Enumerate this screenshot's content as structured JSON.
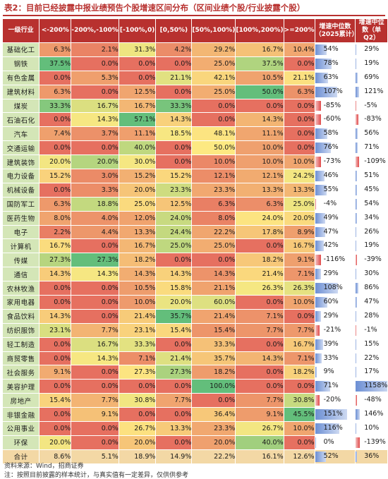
{
  "title": "表2：目前已经披露中报业绩预告个股增速区间分布（区间业绩个股/行业披露个股）",
  "headers": [
    "一级行业",
    "<-200%",
    "-200%,-100%",
    "[-100%,0)",
    "[0,50%)",
    "[50%,100%)",
    "[100%,200%)",
    ">=200%",
    "增速中位数（2025累计）",
    "增速中位数（单Q2）"
  ],
  "rows": [
    {
      "industry": "基础化工",
      "cells": [
        "6.3%",
        "2.1%",
        "31.3%",
        "4.2%",
        "29.2%",
        "16.7%",
        "10.4%"
      ],
      "m1": "54%",
      "m2": "29%"
    },
    {
      "industry": "钢铁",
      "cells": [
        "37.5%",
        "0.0%",
        "0.0%",
        "0.0%",
        "25.0%",
        "37.5%",
        "0.0%"
      ],
      "m1": "78%",
      "m2": "19%"
    },
    {
      "industry": "有色金属",
      "cells": [
        "0.0%",
        "5.3%",
        "0.0%",
        "21.1%",
        "42.1%",
        "10.5%",
        "21.1%"
      ],
      "m1": "63%",
      "m2": "69%"
    },
    {
      "industry": "建筑材料",
      "cells": [
        "6.3%",
        "0.0%",
        "12.5%",
        "0.0%",
        "25.0%",
        "50.0%",
        "6.3%"
      ],
      "m1": "107%",
      "m2": "121%"
    },
    {
      "industry": "煤炭",
      "cells": [
        "33.3%",
        "16.7%",
        "16.7%",
        "33.3%",
        "0.0%",
        "0.0%",
        "0.0%"
      ],
      "m1": "-85%",
      "m2": "-5%"
    },
    {
      "industry": "石油石化",
      "cells": [
        "0.0%",
        "14.3%",
        "57.1%",
        "14.3%",
        "0.0%",
        "14.3%",
        "0.0%"
      ],
      "m1": "-60%",
      "m2": "-83%"
    },
    {
      "industry": "汽车",
      "cells": [
        "7.4%",
        "3.7%",
        "11.1%",
        "18.5%",
        "48.1%",
        "11.1%",
        "0.0%"
      ],
      "m1": "58%",
      "m2": "56%"
    },
    {
      "industry": "交通运输",
      "cells": [
        "0.0%",
        "0.0%",
        "40.0%",
        "0.0%",
        "50.0%",
        "10.0%",
        "0.0%"
      ],
      "m1": "76%",
      "m2": "71%"
    },
    {
      "industry": "建筑装饰",
      "cells": [
        "20.0%",
        "20.0%",
        "30.0%",
        "0.0%",
        "10.0%",
        "10.0%",
        "10.0%"
      ],
      "m1": "-73%",
      "m2": "-109%"
    },
    {
      "industry": "电力设备",
      "cells": [
        "15.2%",
        "3.0%",
        "15.2%",
        "15.2%",
        "12.1%",
        "12.1%",
        "24.2%"
      ],
      "m1": "46%",
      "m2": "51%"
    },
    {
      "industry": "机械设备",
      "cells": [
        "0.0%",
        "3.3%",
        "20.0%",
        "23.3%",
        "23.3%",
        "13.3%",
        "13.3%"
      ],
      "m1": "55%",
      "m2": "45%"
    },
    {
      "industry": "国防军工",
      "cells": [
        "6.3%",
        "18.8%",
        "25.0%",
        "12.5%",
        "6.3%",
        "6.3%",
        "25.0%"
      ],
      "m1": "-4%",
      "m2": "54%"
    },
    {
      "industry": "医药生物",
      "cells": [
        "8.0%",
        "4.0%",
        "12.0%",
        "24.0%",
        "8.0%",
        "24.0%",
        "20.0%"
      ],
      "m1": "49%",
      "m2": "34%"
    },
    {
      "industry": "电子",
      "cells": [
        "2.2%",
        "4.4%",
        "13.3%",
        "24.4%",
        "22.2%",
        "17.8%",
        "8.9%"
      ],
      "m1": "47%",
      "m2": "26%"
    },
    {
      "industry": "计算机",
      "cells": [
        "16.7%",
        "0.0%",
        "16.7%",
        "25.0%",
        "25.0%",
        "0.0%",
        "16.7%"
      ],
      "m1": "42%",
      "m2": "19%"
    },
    {
      "industry": "传媒",
      "cells": [
        "27.3%",
        "27.3%",
        "18.2%",
        "0.0%",
        "0.0%",
        "18.2%",
        "9.1%"
      ],
      "m1": "-116%",
      "m2": "-39%"
    },
    {
      "industry": "通信",
      "cells": [
        "14.3%",
        "14.3%",
        "14.3%",
        "14.3%",
        "14.3%",
        "21.4%",
        "7.1%"
      ],
      "m1": "29%",
      "m2": "30%"
    },
    {
      "industry": "农林牧渔",
      "cells": [
        "0.0%",
        "0.0%",
        "10.5%",
        "15.8%",
        "21.1%",
        "26.3%",
        "26.3%"
      ],
      "m1": "108%",
      "m2": "86%"
    },
    {
      "industry": "家用电器",
      "cells": [
        "0.0%",
        "0.0%",
        "10.0%",
        "20.0%",
        "60.0%",
        "0.0%",
        "10.0%"
      ],
      "m1": "60%",
      "m2": "47%"
    },
    {
      "industry": "食品饮料",
      "cells": [
        "14.3%",
        "0.0%",
        "21.4%",
        "35.7%",
        "21.4%",
        "7.1%",
        "0.0%"
      ],
      "m1": "29%",
      "m2": "28%"
    },
    {
      "industry": "纺织服饰",
      "cells": [
        "23.1%",
        "7.7%",
        "23.1%",
        "15.4%",
        "15.4%",
        "7.7%",
        "7.7%"
      ],
      "m1": "-21%",
      "m2": "-1%"
    },
    {
      "industry": "轻工制造",
      "cells": [
        "0.0%",
        "16.7%",
        "33.3%",
        "0.0%",
        "33.3%",
        "0.0%",
        "16.7%"
      ],
      "m1": "39%",
      "m2": "15%"
    },
    {
      "industry": "商贸零售",
      "cells": [
        "0.0%",
        "14.3%",
        "7.1%",
        "21.4%",
        "35.7%",
        "14.3%",
        "7.1%"
      ],
      "m1": "33%",
      "m2": "22%"
    },
    {
      "industry": "社会服务",
      "cells": [
        "9.1%",
        "0.0%",
        "27.3%",
        "27.3%",
        "18.2%",
        "0.0%",
        "18.2%"
      ],
      "m1": "9%",
      "m2": "17%"
    },
    {
      "industry": "美容护理",
      "cells": [
        "0.0%",
        "0.0%",
        "0.0%",
        "0.0%",
        "100.0%",
        "0.0%",
        "0.0%"
      ],
      "m1": "71%",
      "m2": "1158%"
    },
    {
      "industry": "房地产",
      "cells": [
        "15.4%",
        "7.7%",
        "30.8%",
        "7.7%",
        "0.0%",
        "7.7%",
        "30.8%"
      ],
      "m1": "-20%",
      "m2": "-48%"
    },
    {
      "industry": "非银金融",
      "cells": [
        "0.0%",
        "9.1%",
        "0.0%",
        "0.0%",
        "36.4%",
        "9.1%",
        "45.5%"
      ],
      "m1": "151%",
      "m2": "146%"
    },
    {
      "industry": "公用事业",
      "cells": [
        "0.0%",
        "0.0%",
        "26.7%",
        "13.3%",
        "23.3%",
        "26.7%",
        "10.0%"
      ],
      "m1": "116%",
      "m2": "10%"
    },
    {
      "industry": "环保",
      "cells": [
        "20.0%",
        "0.0%",
        "20.0%",
        "0.0%",
        "20.0%",
        "40.0%",
        "0.0%"
      ],
      "m1": "0%",
      "m2": "-139%"
    }
  ],
  "total": {
    "industry": "合计",
    "cells": [
      "8.6%",
      "5.1%",
      "18.9%",
      "14.9%",
      "22.2%",
      "16.1%",
      "12.6%"
    ],
    "m1": "52%",
    "m2": "36%"
  },
  "notes": [
    "资料来源：Wind，招商证券",
    "注：按照目前披露的样本统计，与真实值有一定差异，仅供供参考"
  ]
}
